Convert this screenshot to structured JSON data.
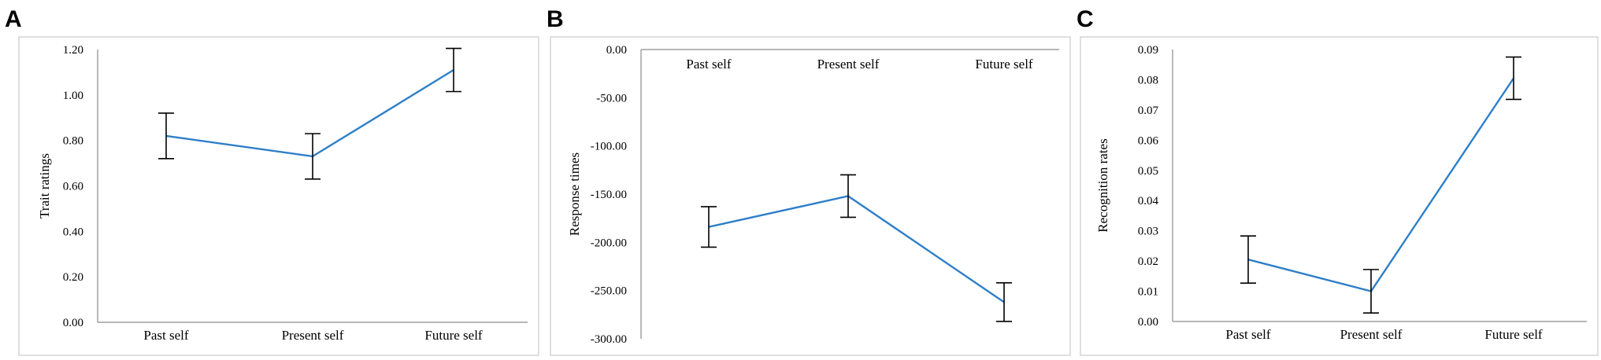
{
  "panels": [
    {
      "letter": "A",
      "chart_data": {
        "type": "line",
        "categories": [
          "Past self",
          "Present self",
          "Future self"
        ],
        "values": [
          0.82,
          0.73,
          1.11
        ],
        "errors": [
          0.1,
          0.1,
          0.095
        ],
        "ylabel": "Trait ratings",
        "ylim": [
          0.0,
          1.2
        ],
        "yticks": [
          "0.00",
          "0.20",
          "0.40",
          "0.60",
          "0.80",
          "1.00",
          "1.20"
        ],
        "grid": false,
        "category_axis": "bottom",
        "line_color": "#2e7fc8"
      }
    },
    {
      "letter": "B",
      "chart_data": {
        "type": "line",
        "categories": [
          "Past self",
          "Present self",
          "Future self"
        ],
        "values": [
          -184,
          -152,
          -262
        ],
        "errors": [
          21,
          22,
          20
        ],
        "ylabel": "Response times",
        "ylim": [
          -300,
          0
        ],
        "yticks": [
          "0.00",
          "-50.00",
          "-100.00",
          "-150.00",
          "-200.00",
          "-250.00",
          "-300.00"
        ],
        "grid": false,
        "category_axis": "top",
        "line_color": "#2e7fc8"
      }
    },
    {
      "letter": "C",
      "chart_data": {
        "type": "line",
        "categories": [
          "Past self",
          "Present self",
          "Future self"
        ],
        "values": [
          0.0205,
          0.01,
          0.0805
        ],
        "errors": [
          0.0078,
          0.0072,
          0.007
        ],
        "ylabel": "Recognition rates",
        "ylim": [
          0.0,
          0.09
        ],
        "yticks": [
          "0.00",
          "0.01",
          "0.02",
          "0.03",
          "0.04",
          "0.05",
          "0.06",
          "0.07",
          "0.08",
          "0.09"
        ],
        "grid": false,
        "category_axis": "bottom",
        "line_color": "#2e7fc8"
      }
    }
  ]
}
